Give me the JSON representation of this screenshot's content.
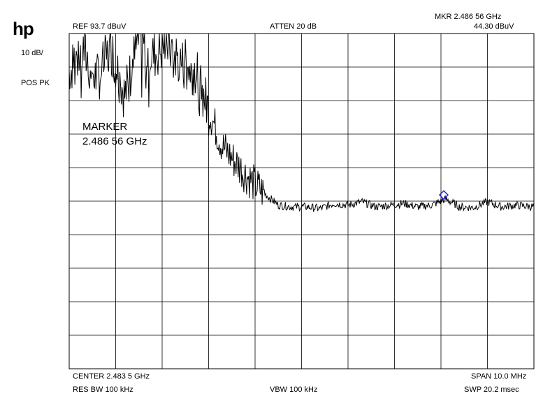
{
  "instrument": {
    "logo": "hp",
    "ref_level": "REF  93.7 dBuV",
    "attenuation": "ATTEN 20 dB",
    "marker_freq_readout": "MKR 2.486 56 GHz",
    "marker_level_readout": "44.30 dBuV",
    "scale": "10 dB/",
    "detector": "POS PK",
    "marker_label": "MARKER",
    "marker_value": "2.486 56 GHz",
    "center": "CENTER 2.483 5 GHz",
    "span": "SPAN 10.0 MHz",
    "res_bw": "RES BW 100 kHz",
    "vbw": "VBW 100 kHz",
    "sweep": "SWP 20.2 msec"
  },
  "chart_data": {
    "type": "line",
    "title": "",
    "xlabel": "",
    "ylabel": "",
    "x_unit": "GHz",
    "y_unit": "dBuV",
    "xlim": [
      2.4785,
      2.4885
    ],
    "ylim": [
      -6.3,
      93.7
    ],
    "grid": true,
    "grid_divisions": {
      "x": 10,
      "y": 10
    },
    "trace_color": "#000000",
    "marker_color": "#1a1ad6",
    "marker": {
      "x": 2.48656,
      "y": 44.3
    },
    "series": [
      {
        "name": "",
        "x": [
          2.4785,
          2.4788,
          2.4791,
          2.4794,
          2.4797,
          2.48,
          2.4803,
          2.4806,
          2.4809,
          2.4812,
          2.4815,
          2.4818,
          2.4821,
          2.4824,
          2.4827,
          2.483,
          2.4833,
          2.4836,
          2.4839,
          2.4842,
          2.4845,
          2.4848,
          2.4851,
          2.4854,
          2.4857,
          2.486,
          2.4863,
          2.4866,
          2.4869,
          2.4872,
          2.4875,
          2.4878,
          2.4881,
          2.4885
        ],
        "y": [
          83.0,
          88.5,
          80.0,
          89.5,
          75.0,
          92.5,
          87.0,
          91.0,
          85.0,
          83.0,
          71.0,
          60.0,
          55.0,
          50.0,
          46.0,
          42.5,
          42.0,
          42.0,
          41.5,
          43.0,
          42.5,
          43.5,
          42.0,
          42.5,
          43.0,
          42.0,
          42.5,
          44.3,
          42.0,
          41.8,
          43.5,
          42.0,
          42.5,
          42.0
        ]
      }
    ]
  }
}
